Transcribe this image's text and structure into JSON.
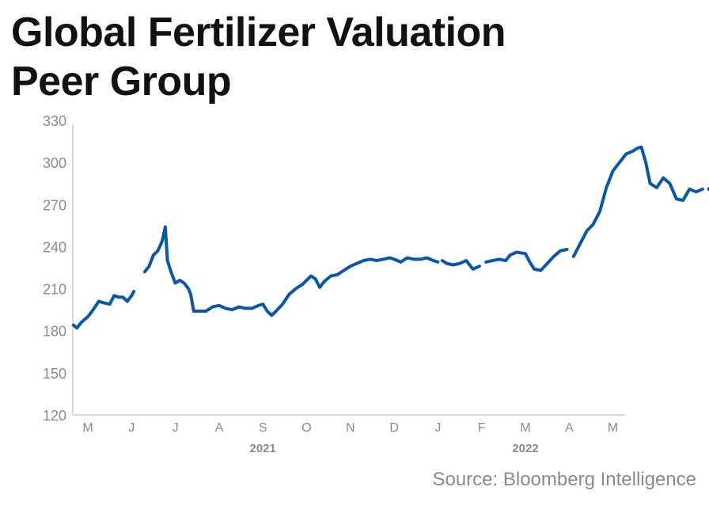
{
  "title_lines": [
    "Global Fertilizer Valuation",
    "Peer Group"
  ],
  "source": "Source: Bloomberg Intelligence",
  "chart_data": {
    "type": "line",
    "title": "Global Fertilizer Valuation Peer Group",
    "ylim": [
      120,
      330
    ],
    "yticks": [
      120,
      150,
      180,
      210,
      240,
      270,
      300,
      330
    ],
    "month_labels": [
      "M",
      "J",
      "J",
      "A",
      "S",
      "O",
      "N",
      "D",
      "J",
      "F",
      "M",
      "A",
      "M"
    ],
    "year_labels": [
      {
        "label": "2021",
        "month_index": 4
      },
      {
        "label": "2022",
        "month_index": 10
      }
    ],
    "last_value": "281.15",
    "line_color": "#0a57a8",
    "x_unit": "month index (0 = May 2021)",
    "segments": [
      [
        [
          -0.33,
          184
        ],
        [
          -0.25,
          182
        ],
        [
          -0.15,
          186
        ],
        [
          0.0,
          190
        ],
        [
          0.1,
          194
        ],
        [
          0.25,
          201
        ],
        [
          0.35,
          200
        ],
        [
          0.5,
          199
        ],
        [
          0.6,
          205
        ],
        [
          0.7,
          204
        ],
        [
          0.8,
          204
        ],
        [
          0.9,
          201
        ],
        [
          1.0,
          205
        ],
        [
          1.05,
          208
        ]
      ],
      [
        [
          1.3,
          222
        ],
        [
          1.4,
          226
        ],
        [
          1.5,
          234
        ],
        [
          1.6,
          237
        ],
        [
          1.7,
          244
        ],
        [
          1.77,
          254
        ],
        [
          1.82,
          230
        ],
        [
          1.9,
          222
        ],
        [
          2.0,
          214
        ],
        [
          2.1,
          216
        ],
        [
          2.2,
          214
        ],
        [
          2.3,
          210
        ],
        [
          2.35,
          206
        ],
        [
          2.42,
          194
        ],
        [
          2.55,
          194
        ],
        [
          2.7,
          194
        ],
        [
          2.85,
          197
        ],
        [
          3.0,
          198
        ],
        [
          3.15,
          196
        ],
        [
          3.3,
          195
        ],
        [
          3.45,
          197
        ],
        [
          3.6,
          196
        ],
        [
          3.75,
          196
        ],
        [
          3.9,
          198
        ],
        [
          4.0,
          199
        ],
        [
          4.1,
          194
        ],
        [
          4.2,
          191
        ],
        [
          4.3,
          194
        ],
        [
          4.45,
          199
        ],
        [
          4.6,
          206
        ],
        [
          4.75,
          210
        ],
        [
          4.9,
          213
        ],
        [
          5.0,
          216
        ],
        [
          5.1,
          219
        ],
        [
          5.2,
          217
        ],
        [
          5.3,
          211
        ],
        [
          5.4,
          215
        ],
        [
          5.55,
          219
        ],
        [
          5.7,
          220
        ],
        [
          5.85,
          223
        ],
        [
          6.0,
          226
        ],
        [
          6.15,
          228
        ],
        [
          6.3,
          230
        ],
        [
          6.45,
          231
        ],
        [
          6.6,
          230
        ],
        [
          6.75,
          231
        ],
        [
          6.9,
          232
        ],
        [
          7.0,
          231
        ],
        [
          7.15,
          229
        ],
        [
          7.3,
          232
        ],
        [
          7.45,
          231
        ],
        [
          7.6,
          231
        ],
        [
          7.75,
          232
        ],
        [
          7.9,
          230
        ],
        [
          8.0,
          229
        ]
      ],
      [
        [
          8.1,
          230
        ],
        [
          8.2,
          228
        ],
        [
          8.35,
          227
        ],
        [
          8.5,
          228
        ],
        [
          8.65,
          230
        ],
        [
          8.8,
          224
        ],
        [
          8.95,
          226
        ]
      ],
      [
        [
          9.1,
          229
        ],
        [
          9.25,
          230
        ],
        [
          9.4,
          231
        ],
        [
          9.55,
          230
        ],
        [
          9.65,
          234
        ],
        [
          9.8,
          236
        ],
        [
          10.0,
          235
        ],
        [
          10.1,
          229
        ],
        [
          10.2,
          224
        ],
        [
          10.35,
          223
        ],
        [
          10.5,
          228
        ],
        [
          10.65,
          233
        ],
        [
          10.8,
          237
        ],
        [
          10.95,
          238
        ]
      ],
      [
        [
          11.1,
          233
        ],
        [
          11.25,
          242
        ],
        [
          11.4,
          251
        ],
        [
          11.55,
          256
        ],
        [
          11.7,
          265
        ],
        [
          11.85,
          282
        ],
        [
          12.0,
          294
        ],
        [
          12.15,
          300
        ],
        [
          12.3,
          306
        ],
        [
          12.45,
          308
        ],
        [
          12.55,
          310
        ],
        [
          12.65,
          311
        ],
        [
          12.75,
          300
        ],
        [
          12.85,
          285
        ],
        [
          13.0,
          282
        ],
        [
          13.15,
          289
        ],
        [
          13.3,
          285
        ],
        [
          13.45,
          274
        ],
        [
          13.6,
          273
        ],
        [
          13.75,
          281
        ],
        [
          13.9,
          279
        ],
        [
          14.05,
          281
        ]
      ]
    ]
  }
}
